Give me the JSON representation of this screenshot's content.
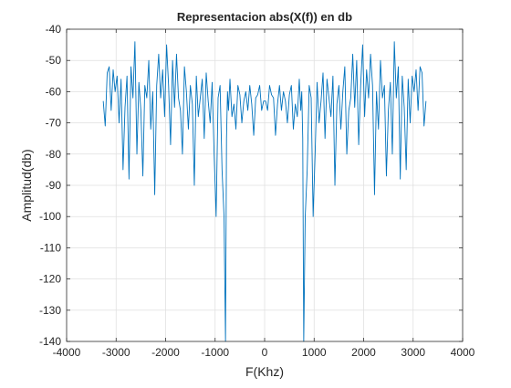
{
  "window": {
    "background": "#ffffff"
  },
  "chart_data": {
    "type": "line",
    "title": "Representacion abs(X(f)) en db",
    "xlabel": "F(Khz)",
    "ylabel": "Amplitud(db)",
    "xlim": [
      -4000,
      4000
    ],
    "ylim": [
      -140,
      -40
    ],
    "xticks": [
      -4000,
      -3000,
      -2000,
      -1000,
      0,
      1000,
      2000,
      3000,
      4000
    ],
    "yticks": [
      -40,
      -50,
      -60,
      -70,
      -80,
      -90,
      -100,
      -110,
      -120,
      -130,
      -140
    ],
    "xtick_labels": [
      "-4000",
      "-3000",
      "-2000",
      "-1000",
      "0",
      "1000",
      "2000",
      "3000",
      "4000"
    ],
    "ytick_labels": [
      "-40",
      "-50",
      "-60",
      "-70",
      "-80",
      "-90",
      "-100",
      "-110",
      "-120",
      "-130",
      "-140"
    ],
    "grid": true,
    "colors": {
      "line": "#0072bd",
      "axes": "#262626",
      "grid": "#dfdfdf"
    },
    "series": [
      {
        "x": [
          -3260,
          -3220,
          -3180,
          -3140,
          -3100,
          -3060,
          -3020,
          -2980,
          -2940,
          -2900,
          -2860,
          -2820,
          -2780,
          -2740,
          -2700,
          -2660,
          -2620,
          -2580,
          -2540,
          -2500,
          -2460,
          -2420,
          -2380,
          -2340,
          -2300,
          -2260,
          -2220,
          -2180,
          -2140,
          -2100,
          -2060,
          -2020,
          -1980,
          -1940,
          -1900,
          -1860,
          -1820,
          -1780,
          -1740,
          -1700,
          -1660,
          -1620,
          -1580,
          -1540,
          -1500,
          -1460,
          -1420,
          -1380,
          -1340,
          -1300,
          -1260,
          -1220,
          -1180,
          -1140,
          -1100,
          -1060,
          -1020,
          -980,
          -940,
          -900,
          -860,
          -820,
          -790,
          -770,
          -750,
          -730,
          -700,
          -660,
          -620,
          -580,
          -540,
          -500,
          -460,
          -420,
          -380,
          -340,
          -300,
          -260,
          -220,
          -180,
          -140,
          -100,
          -60,
          -20,
          20,
          60,
          100,
          140,
          180,
          220,
          260,
          300,
          340,
          380,
          420,
          460,
          500,
          540,
          580,
          620,
          660,
          700,
          730,
          750,
          770,
          790,
          820,
          860,
          900,
          940,
          980,
          1020,
          1060,
          1100,
          1140,
          1180,
          1220,
          1260,
          1300,
          1340,
          1380,
          1420,
          1460,
          1500,
          1540,
          1580,
          1620,
          1660,
          1700,
          1740,
          1780,
          1820,
          1860,
          1900,
          1940,
          1980,
          2020,
          2060,
          2100,
          2140,
          2180,
          2220,
          2260,
          2300,
          2340,
          2380,
          2420,
          2460,
          2500,
          2540,
          2580,
          2620,
          2660,
          2700,
          2740,
          2780,
          2820,
          2860,
          2900,
          2940,
          2980,
          3020,
          3060,
          3100,
          3140,
          3180,
          3220,
          3260
        ],
        "values": [
          -63,
          -71,
          -54,
          -52,
          -66,
          -53,
          -60,
          -55,
          -70,
          -56,
          -85,
          -65,
          -55,
          -88,
          -52,
          -62,
          -44,
          -80,
          -57,
          -66,
          -87,
          -58,
          -62,
          -50,
          -72,
          -60,
          -93,
          -58,
          -48,
          -62,
          -53,
          -68,
          -45,
          -58,
          -77,
          -50,
          -65,
          -48,
          -62,
          -66,
          -80,
          -52,
          -60,
          -72,
          -58,
          -64,
          -90,
          -55,
          -68,
          -62,
          -56,
          -75,
          -54,
          -63,
          -70,
          -57,
          -80,
          -100,
          -62,
          -58,
          -85,
          -100,
          -140,
          -75,
          -60,
          -66,
          -56,
          -68,
          -64,
          -72,
          -58,
          -61,
          -70,
          -63,
          -60,
          -66,
          -58,
          -64,
          -74,
          -62,
          -61,
          -58,
          -66,
          -63,
          -63,
          -66,
          -58,
          -61,
          -62,
          -74,
          -64,
          -58,
          -66,
          -60,
          -63,
          -70,
          -61,
          -58,
          -72,
          -64,
          -68,
          -56,
          -66,
          -60,
          -75,
          -140,
          -100,
          -85,
          -58,
          -62,
          -100,
          -80,
          -57,
          -70,
          -63,
          -54,
          -75,
          -56,
          -62,
          -68,
          -55,
          -90,
          -64,
          -58,
          -72,
          -60,
          -52,
          -80,
          -66,
          -62,
          -48,
          -65,
          -50,
          -77,
          -58,
          -45,
          -68,
          -53,
          -62,
          -48,
          -58,
          -93,
          -60,
          -72,
          -50,
          -62,
          -58,
          -87,
          -66,
          -57,
          -80,
          -44,
          -62,
          -52,
          -88,
          -55,
          -65,
          -85,
          -56,
          -70,
          -55,
          -60,
          -53,
          -66,
          -52,
          -54,
          -71,
          -63
        ]
      }
    ]
  }
}
